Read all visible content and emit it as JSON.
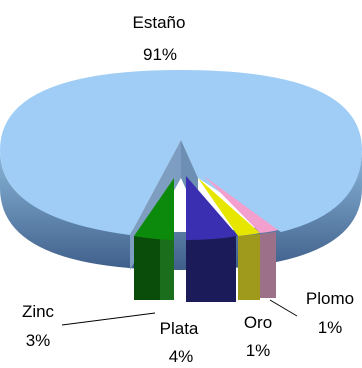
{
  "chart_data": {
    "type": "pie",
    "title": "",
    "labels": [
      "Estaño",
      "Zinc",
      "Plata",
      "Oro",
      "Plomo"
    ],
    "values": [
      91,
      3,
      4,
      1,
      1
    ],
    "value_labels": [
      "91%",
      "3%",
      "4%",
      "1%",
      "1%"
    ],
    "colors": {
      "Estaño": "#9fcdf6",
      "Zinc": "#0b8a0b",
      "Plata": "#3a2fb0",
      "Oro": "#e6e600",
      "Plomo": "#f3a0cf"
    },
    "legend": "none"
  }
}
